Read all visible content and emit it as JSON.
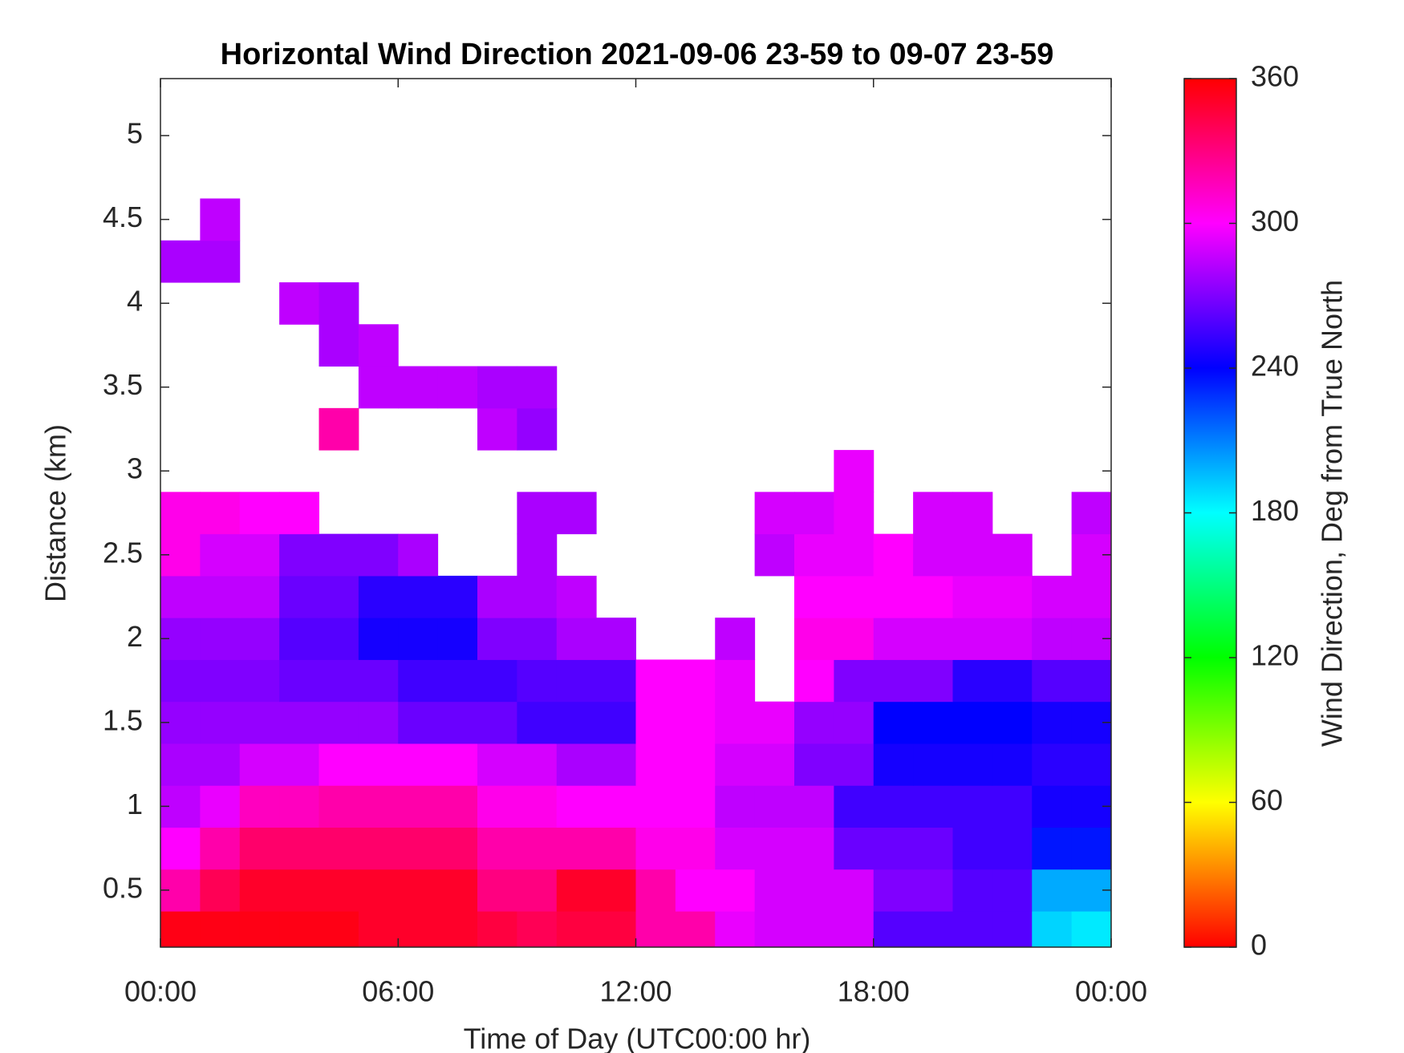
{
  "chart_data": {
    "type": "heatmap",
    "title": "Horizontal Wind Direction 2021-09-06 23-59 to 09-07 23-59",
    "xlabel": "Time of Day (UTC00:00 hr)",
    "ylabel": "Distance (km)",
    "colorbar_label": "Wind Direction, Deg from True North",
    "colormap": "hsv",
    "x": [
      0.5,
      1.5,
      2.5,
      3.5,
      4.5,
      5.5,
      6.5,
      7.5,
      8.5,
      9.5,
      10.5,
      11.5,
      12.5,
      13.5,
      14.5,
      15.5,
      16.5,
      17.5,
      18.5,
      19.5,
      20.5,
      21.5,
      22.5,
      23.5
    ],
    "y": [
      0.25,
      0.5,
      0.75,
      1.0,
      1.25,
      1.5,
      1.75,
      2.0,
      2.25,
      2.5,
      2.75,
      3.0,
      3.25,
      3.5,
      3.75,
      4.0,
      4.25,
      4.5
    ],
    "z": [
      [
        355,
        355,
        355,
        355,
        355,
        350,
        350,
        350,
        345,
        340,
        345,
        345,
        320,
        320,
        295,
        290,
        290,
        290,
        260,
        260,
        260,
        260,
        190,
        185
      ],
      [
        320,
        340,
        350,
        350,
        350,
        350,
        350,
        350,
        330,
        330,
        350,
        350,
        320,
        300,
        300,
        290,
        290,
        290,
        270,
        270,
        260,
        260,
        200,
        200
      ],
      [
        300,
        320,
        335,
        335,
        335,
        335,
        335,
        335,
        320,
        320,
        320,
        320,
        305,
        305,
        290,
        290,
        290,
        265,
        265,
        265,
        255,
        255,
        235,
        235
      ],
      [
        285,
        295,
        315,
        315,
        320,
        320,
        320,
        320,
        305,
        305,
        300,
        300,
        300,
        300,
        285,
        285,
        285,
        255,
        255,
        255,
        255,
        255,
        245,
        245
      ],
      [
        280,
        280,
        290,
        290,
        300,
        300,
        300,
        300,
        290,
        290,
        280,
        280,
        300,
        300,
        290,
        290,
        270,
        270,
        245,
        245,
        245,
        245,
        250,
        250
      ],
      [
        275,
        275,
        275,
        275,
        275,
        275,
        265,
        265,
        265,
        255,
        255,
        255,
        300,
        300,
        295,
        295,
        275,
        275,
        240,
        240,
        240,
        240,
        245,
        245
      ],
      [
        270,
        270,
        270,
        265,
        265,
        265,
        255,
        255,
        255,
        260,
        260,
        260,
        300,
        300,
        295,
        null,
        300,
        270,
        270,
        270,
        250,
        250,
        260,
        260
      ],
      [
        275,
        275,
        275,
        260,
        260,
        245,
        245,
        245,
        270,
        270,
        280,
        280,
        null,
        null,
        285,
        null,
        305,
        305,
        290,
        290,
        290,
        290,
        285,
        285
      ],
      [
        285,
        285,
        285,
        265,
        265,
        250,
        250,
        250,
        280,
        280,
        285,
        null,
        null,
        null,
        null,
        null,
        300,
        300,
        300,
        300,
        295,
        295,
        290,
        290
      ],
      [
        305,
        290,
        290,
        270,
        270,
        270,
        280,
        null,
        null,
        280,
        null,
        null,
        null,
        null,
        null,
        285,
        295,
        295,
        300,
        290,
        290,
        290,
        null,
        290
      ],
      [
        305,
        305,
        300,
        300,
        null,
        null,
        null,
        null,
        null,
        280,
        280,
        null,
        null,
        null,
        null,
        290,
        290,
        295,
        null,
        290,
        290,
        null,
        null,
        285
      ],
      [
        null,
        null,
        null,
        null,
        null,
        null,
        null,
        null,
        null,
        null,
        null,
        null,
        null,
        null,
        null,
        null,
        null,
        295,
        null,
        null,
        null,
        null,
        null,
        null
      ],
      [
        null,
        null,
        null,
        null,
        320,
        null,
        null,
        null,
        285,
        275,
        null,
        null,
        null,
        null,
        null,
        null,
        null,
        null,
        null,
        null,
        null,
        null,
        null,
        null
      ],
      [
        null,
        null,
        null,
        null,
        null,
        285,
        285,
        285,
        280,
        280,
        null,
        null,
        null,
        null,
        null,
        null,
        null,
        null,
        null,
        null,
        null,
        null,
        null,
        null
      ],
      [
        null,
        null,
        null,
        null,
        280,
        285,
        null,
        null,
        null,
        null,
        null,
        null,
        null,
        null,
        null,
        null,
        null,
        null,
        null,
        null,
        null,
        null,
        null,
        null
      ],
      [
        null,
        null,
        null,
        285,
        280,
        null,
        null,
        null,
        null,
        null,
        null,
        null,
        null,
        null,
        null,
        null,
        null,
        null,
        null,
        null,
        null,
        null,
        null,
        null
      ],
      [
        280,
        280,
        null,
        null,
        null,
        null,
        null,
        null,
        null,
        null,
        null,
        null,
        null,
        null,
        null,
        null,
        null,
        null,
        null,
        null,
        null,
        null,
        null,
        null
      ],
      [
        null,
        285,
        null,
        null,
        null,
        null,
        null,
        null,
        null,
        null,
        null,
        null,
        null,
        null,
        null,
        null,
        null,
        null,
        null,
        null,
        null,
        null,
        null,
        null
      ]
    ],
    "xlim": [
      0,
      24
    ],
    "xticks": [
      {
        "value": 0,
        "label": "00:00"
      },
      {
        "value": 6,
        "label": "06:00"
      },
      {
        "value": 12,
        "label": "12:00"
      },
      {
        "value": 18,
        "label": "18:00"
      },
      {
        "value": 24,
        "label": "00:00"
      }
    ],
    "ylim": [
      0.16,
      5.34
    ],
    "yticks": [
      0.5,
      1,
      1.5,
      2,
      2.5,
      3,
      3.5,
      4,
      4.5,
      5
    ],
    "clim": [
      0,
      360
    ],
    "cticks": [
      0,
      60,
      120,
      180,
      240,
      300,
      360
    ]
  }
}
